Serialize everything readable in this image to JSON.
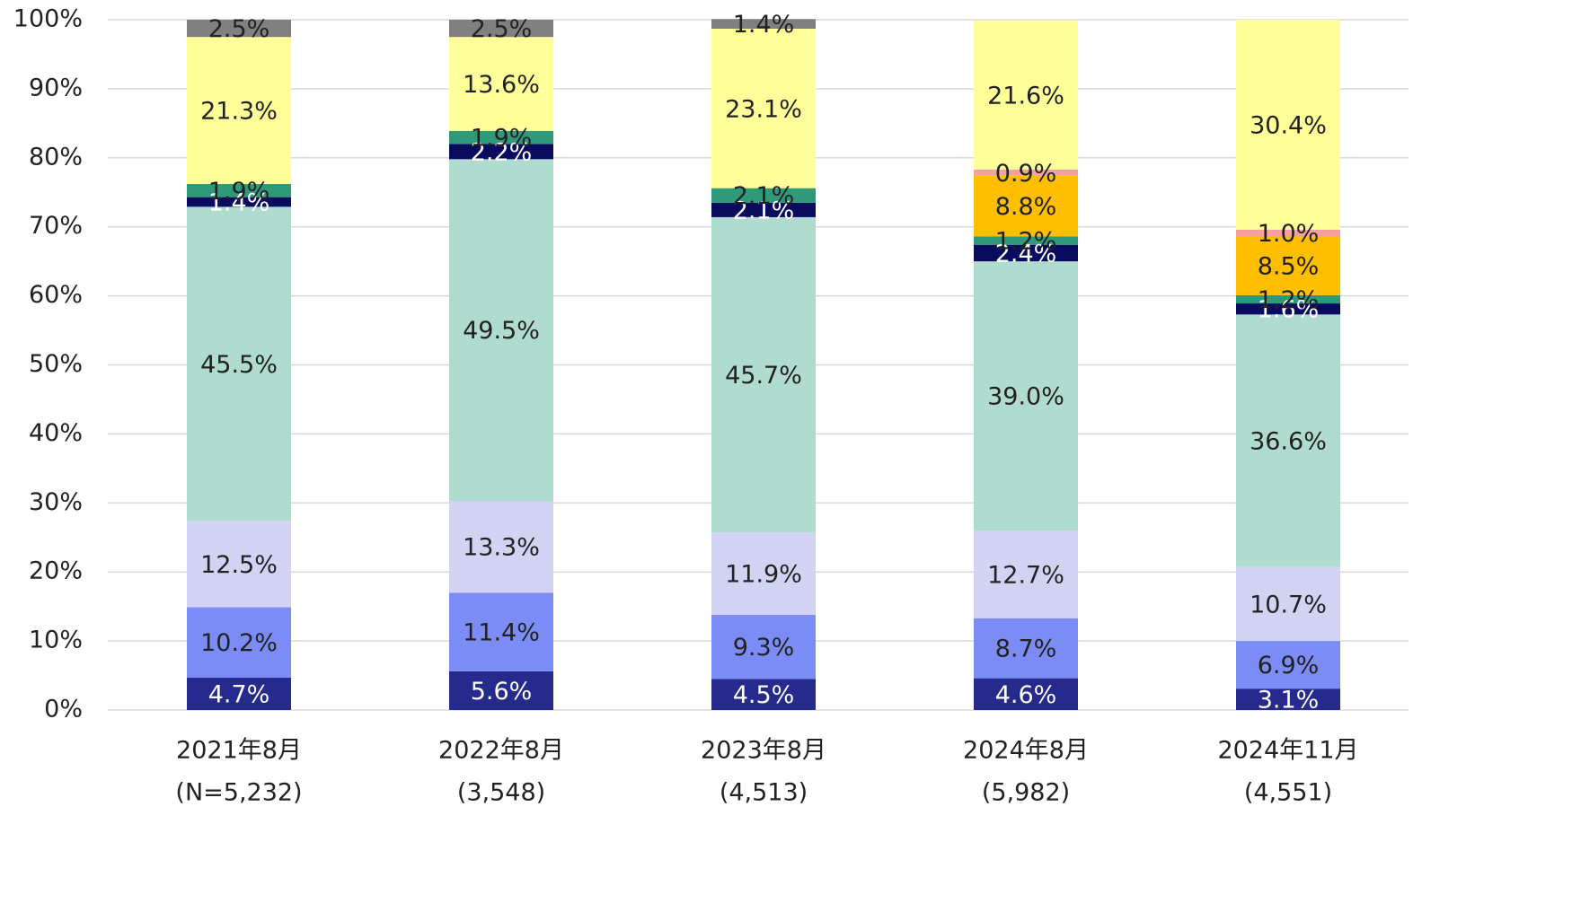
{
  "chart_data": {
    "type": "stacked_bar",
    "categories": [
      "2021年8月",
      "2022年8月",
      "2023年8月",
      "2024年8月",
      "2024年11月"
    ],
    "category_notes": [
      "(N=5,232)",
      "(3,548)",
      "(4,513)",
      "(5,982)",
      "(4,551)"
    ],
    "ylim": [
      0,
      100
    ],
    "yticks": [
      {
        "value": 0,
        "label": "0%"
      },
      {
        "value": 10,
        "label": "10%"
      },
      {
        "value": 20,
        "label": "20%"
      },
      {
        "value": 30,
        "label": "30%"
      },
      {
        "value": 40,
        "label": "40%"
      },
      {
        "value": 50,
        "label": "50%"
      },
      {
        "value": 60,
        "label": "60%"
      },
      {
        "value": 70,
        "label": "70%"
      },
      {
        "value": 80,
        "label": "80%"
      },
      {
        "value": 90,
        "label": "90%"
      },
      {
        "value": 100,
        "label": "100%"
      }
    ],
    "grid": true,
    "series": [
      {
        "color": "#262a8c",
        "label_color": "#ffffff",
        "values": [
          4.7,
          5.6,
          4.5,
          4.6,
          3.1
        ],
        "value_labels": [
          "4.7%",
          "5.6%",
          "4.5%",
          "4.6%",
          "3.1%"
        ]
      },
      {
        "color": "#7b8cf7",
        "label_color": "#222222",
        "values": [
          10.2,
          11.4,
          9.3,
          8.7,
          6.9
        ],
        "value_labels": [
          "10.2%",
          "11.4%",
          "9.3%",
          "8.7%",
          "6.9%"
        ]
      },
      {
        "color": "#d2d2f3",
        "label_color": "#222222",
        "values": [
          12.5,
          13.3,
          11.9,
          12.7,
          10.7
        ],
        "value_labels": [
          "12.5%",
          "13.3%",
          "11.9%",
          "12.7%",
          "10.7%"
        ]
      },
      {
        "color": "#b0dccf",
        "label_color": "#222222",
        "values": [
          45.5,
          49.5,
          45.7,
          39.0,
          36.6
        ],
        "value_labels": [
          "45.5%",
          "49.5%",
          "45.7%",
          "39.0%",
          "36.6%"
        ]
      },
      {
        "color": "#0a0a5e",
        "label_color": "#ffffff",
        "values": [
          1.4,
          2.2,
          2.1,
          2.4,
          1.6
        ],
        "value_labels": [
          "1.4%",
          "2.2%",
          "2.1%",
          "2.4%",
          "1.6%"
        ]
      },
      {
        "color": "#2e9a7a",
        "label_color": "#222222",
        "values": [
          1.9,
          1.9,
          2.1,
          1.2,
          1.2
        ],
        "value_labels": [
          "1.9%",
          "1.9%",
          "2.1%",
          "1.2%",
          "1.2%"
        ]
      },
      {
        "color": "#ffbf00",
        "label_color": "#222222",
        "values": [
          null,
          null,
          null,
          8.8,
          8.5
        ],
        "value_labels": [
          null,
          null,
          null,
          "8.8%",
          "8.5%"
        ]
      },
      {
        "color": "#f4a0a0",
        "label_color": "#222222",
        "values": [
          null,
          null,
          null,
          0.9,
          1.0
        ],
        "value_labels": [
          null,
          null,
          null,
          "0.9%",
          "1.0%"
        ]
      },
      {
        "color": "#ffff99",
        "label_color": "#222222",
        "values": [
          21.3,
          13.6,
          23.1,
          21.6,
          30.4
        ],
        "value_labels": [
          "21.3%",
          "13.6%",
          "23.1%",
          "21.6%",
          "30.4%"
        ]
      },
      {
        "color": "#808080",
        "label_color": "#222222",
        "values": [
          2.5,
          2.5,
          1.4,
          null,
          null
        ],
        "value_labels": [
          "2.5%",
          "2.5%",
          "1.4%",
          null,
          null
        ]
      }
    ]
  }
}
